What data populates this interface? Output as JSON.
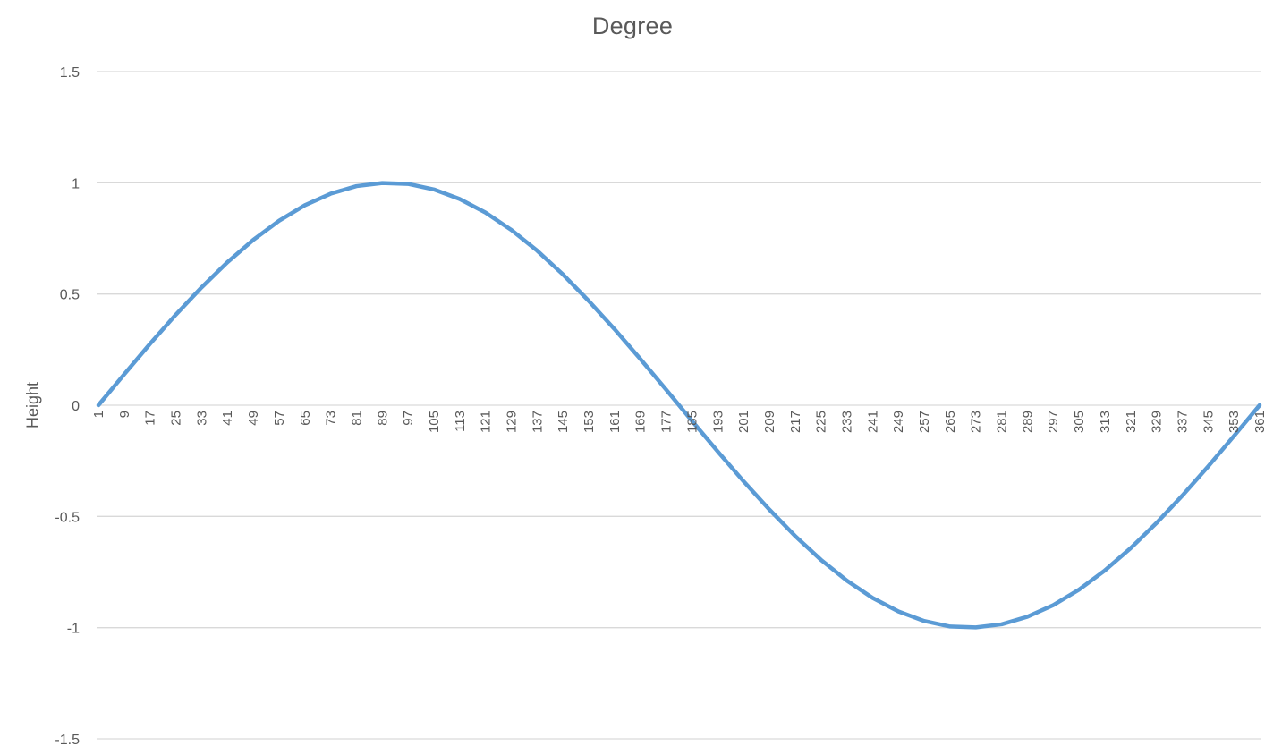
{
  "chart_data": {
    "type": "line",
    "title": "Degree",
    "xlabel": "",
    "ylabel": "Height",
    "ylim": [
      -1.5,
      1.5
    ],
    "y_ticks": [
      "1.5",
      "1",
      "0.5",
      "0",
      "-0.5",
      "-1",
      "-1.5"
    ],
    "y_tick_values": [
      1.5,
      1,
      0.5,
      0,
      -0.5,
      -1,
      -1.5
    ],
    "x_ticks": [
      "1",
      "9",
      "17",
      "25",
      "33",
      "41",
      "49",
      "57",
      "65",
      "73",
      "81",
      "89",
      "97",
      "105",
      "113",
      "121",
      "129",
      "137",
      "145",
      "153",
      "161",
      "169",
      "177",
      "185",
      "193",
      "201",
      "209",
      "217",
      "225",
      "233",
      "241",
      "249",
      "257",
      "265",
      "273",
      "281",
      "289",
      "297",
      "305",
      "313",
      "321",
      "329",
      "337",
      "345",
      "353",
      "361"
    ],
    "x_tick_values": [
      1,
      9,
      17,
      25,
      33,
      41,
      49,
      57,
      65,
      73,
      81,
      89,
      97,
      105,
      113,
      121,
      129,
      137,
      145,
      153,
      161,
      169,
      177,
      185,
      193,
      201,
      209,
      217,
      225,
      233,
      241,
      249,
      257,
      265,
      273,
      281,
      289,
      297,
      305,
      313,
      321,
      329,
      337,
      345,
      353,
      361
    ],
    "x_range": [
      1,
      361
    ],
    "grid": true,
    "legend": "none",
    "series": [
      {
        "color": "#5B9BD5",
        "x": [
          1,
          9,
          17,
          25,
          33,
          41,
          49,
          57,
          65,
          73,
          81,
          89,
          97,
          105,
          113,
          121,
          129,
          137,
          145,
          153,
          161,
          169,
          177,
          185,
          193,
          201,
          209,
          217,
          225,
          233,
          241,
          249,
          257,
          265,
          273,
          281,
          289,
          297,
          305,
          313,
          321,
          329,
          337,
          345,
          353,
          361
        ],
        "values": [
          0,
          0.139,
          0.276,
          0.407,
          0.53,
          0.643,
          0.743,
          0.829,
          0.899,
          0.951,
          0.985,
          0.999,
          0.995,
          0.97,
          0.927,
          0.866,
          0.788,
          0.695,
          0.588,
          0.469,
          0.342,
          0.208,
          0.07,
          -0.07,
          -0.208,
          -0.342,
          -0.469,
          -0.588,
          -0.695,
          -0.788,
          -0.866,
          -0.927,
          -0.97,
          -0.995,
          -0.999,
          -0.985,
          -0.951,
          -0.899,
          -0.829,
          -0.743,
          -0.643,
          -0.53,
          -0.407,
          -0.276,
          -0.139,
          0
        ]
      }
    ]
  }
}
